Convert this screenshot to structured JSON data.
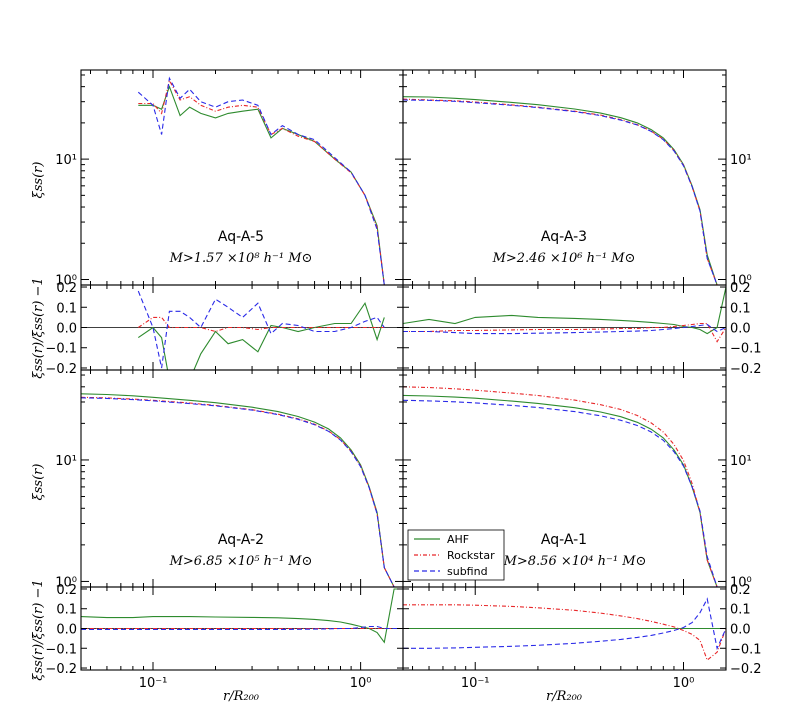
{
  "chart_data": {
    "type": "line",
    "x_scale": "log",
    "xlim": [
      0.045,
      1.6
    ],
    "x_ticks": [
      0.1,
      1.0
    ],
    "x_tick_labels": [
      "10⁻¹",
      "10⁰"
    ],
    "xlabel": "r/R₂₀₀",
    "main_ylabel": "ξss(r)",
    "ratio_ylabel": "ξss(r)/ξ̄ss(r) −1",
    "main_y_scale": "log",
    "main_ylim": [
      0.9,
      55
    ],
    "main_y_tick_labels": [
      "10⁰",
      "10¹"
    ],
    "ratio_ylim": [
      -0.21,
      0.21
    ],
    "ratio_y_ticks": [
      0.2,
      0.1,
      0.0,
      -0.1,
      -0.2
    ],
    "ratio_y_tick_labels": [
      "0.2",
      "0.1",
      "0.0",
      "−0.1",
      "−0.2"
    ],
    "legend": {
      "placement": "lower-left of panel Aq-A-1",
      "entries": [
        {
          "name": "AHF",
          "color": "#2e8b2e",
          "style": "solid"
        },
        {
          "name": "Rockstar",
          "color": "#e8282a",
          "style": "dashdot"
        },
        {
          "name": "subfind",
          "color": "#2a2ae8",
          "style": "dashed"
        }
      ]
    },
    "panels": [
      {
        "title": "Aq-A-5",
        "mass_label": "M>1.57 ×10⁸ h⁻¹ M⊙",
        "x": [
          0.085,
          0.1,
          0.11,
          0.12,
          0.135,
          0.15,
          0.17,
          0.2,
          0.23,
          0.27,
          0.32,
          0.37,
          0.42,
          0.5,
          0.6,
          0.75,
          0.9,
          1.05,
          1.2,
          1.3
        ],
        "series": [
          {
            "name": "AHF",
            "values": [
              28,
              28,
              26,
              40,
              23,
              27,
              24,
              22,
              24,
              25,
              26,
              15,
              18,
              16,
              14,
              10,
              7.8,
              5,
              2.8,
              0.9
            ]
          },
          {
            "name": "Rockstar",
            "values": [
              29,
              29,
              24,
              45,
              31,
              33,
              28,
              25,
              27,
              28,
              27,
              16,
              18,
              15.5,
              14,
              10,
              7.7,
              5,
              2.7,
              0.9
            ]
          },
          {
            "name": "subfind",
            "values": [
              36,
              28,
              16,
              47,
              32,
              38,
              30,
              27,
              30,
              31,
              28,
              16,
              19,
              16,
              14.5,
              10.3,
              7.8,
              5,
              2.6,
              0.9
            ]
          }
        ],
        "ratio": [
          {
            "name": "AHF",
            "values": [
              -0.05,
              0.0,
              -0.05,
              -0.26,
              -0.33,
              -0.27,
              -0.13,
              -0.02,
              -0.08,
              -0.06,
              -0.12,
              0.01,
              0.0,
              -0.02,
              0.0,
              0.02,
              0.02,
              0.12,
              -0.06,
              0.05
            ]
          },
          {
            "name": "Rockstar",
            "values": [
              0.0,
              0.05,
              0.05,
              0.0,
              0.0,
              0.0,
              0.0,
              -0.02,
              0.0,
              0.0,
              -0.01,
              0.0,
              0.0,
              0.0,
              0.0,
              0.0,
              0.0,
              0.0,
              0.0,
              0.0
            ]
          },
          {
            "name": "subfind",
            "values": [
              0.18,
              0.0,
              -0.2,
              0.08,
              0.08,
              0.05,
              0.0,
              0.14,
              0.1,
              0.05,
              0.12,
              -0.03,
              0.02,
              0.01,
              -0.02,
              -0.02,
              0.0,
              0.03,
              0.05,
              0.0
            ]
          }
        ]
      },
      {
        "title": "Aq-A-3",
        "mass_label": "M>2.46 ×10⁶ h⁻¹ M⊙",
        "x": [
          0.045,
          0.06,
          0.08,
          0.1,
          0.15,
          0.2,
          0.3,
          0.4,
          0.5,
          0.6,
          0.7,
          0.8,
          0.9,
          1.0,
          1.1,
          1.2,
          1.3,
          1.45,
          1.6
        ],
        "series": [
          {
            "name": "AHF",
            "values": [
              33,
              32.8,
              32,
              31.2,
              29.6,
              28.3,
              26.1,
              24.1,
              22.1,
              20,
              17.6,
              15,
              12,
              9,
              6,
              3.8,
              1.6,
              0.88,
              0.85
            ]
          },
          {
            "name": "Rockstar",
            "values": [
              31.5,
              31,
              30.5,
              29.8,
              28.2,
              27,
              25,
              23.2,
              21.3,
              19.3,
              17.1,
              14.6,
              11.8,
              8.9,
              5.9,
              3.7,
              1.5,
              0.88,
              0.85
            ]
          },
          {
            "name": "subfind",
            "values": [
              31,
              30.8,
              30.2,
              29.4,
              28,
              26.8,
              24.8,
              23,
              21.1,
              19.2,
              17,
              14.5,
              11.7,
              8.8,
              5.9,
              3.7,
              1.5,
              0.88,
              0.85
            ]
          }
        ],
        "ratio": [
          {
            "name": "AHF",
            "values": [
              0.02,
              0.04,
              0.02,
              0.05,
              0.06,
              0.05,
              0.045,
              0.04,
              0.035,
              0.03,
              0.025,
              0.02,
              0.015,
              0.005,
              0.0,
              -0.01,
              -0.03,
              0.0,
              0.2
            ]
          },
          {
            "name": "Rockstar",
            "values": [
              -0.02,
              -0.02,
              -0.015,
              -0.015,
              -0.012,
              -0.01,
              -0.01,
              -0.008,
              -0.005,
              -0.005,
              0.0,
              0.0,
              0.005,
              0.01,
              0.015,
              0.02,
              0.02,
              -0.07,
              0.0
            ]
          },
          {
            "name": "subfind",
            "values": [
              -0.02,
              -0.02,
              -0.025,
              -0.03,
              -0.03,
              -0.028,
              -0.025,
              -0.022,
              -0.02,
              -0.018,
              -0.015,
              -0.01,
              -0.005,
              0.0,
              0.005,
              0.01,
              0.015,
              -0.02,
              0.0
            ]
          }
        ]
      },
      {
        "title": "Aq-A-2",
        "mass_label": "M>6.85 ×10⁵ h⁻¹ M⊙",
        "x": [
          0.045,
          0.06,
          0.08,
          0.1,
          0.15,
          0.2,
          0.3,
          0.4,
          0.5,
          0.6,
          0.7,
          0.8,
          0.9,
          1.0,
          1.1,
          1.2,
          1.3,
          1.45,
          1.6
        ],
        "series": [
          {
            "name": "AHF",
            "values": [
              35,
              34.6,
              33.7,
              32.8,
              31,
              29.6,
              27.2,
              25,
              22.8,
              20.5,
              18,
              15.2,
              12.1,
              9.1,
              6,
              3.7,
              1.3,
              0.88,
              0.85
            ]
          },
          {
            "name": "Rockstar",
            "values": [
              32.8,
              32.4,
              31.7,
              31,
              29.4,
              28.1,
              25.9,
              23.8,
              21.8,
              19.7,
              17.3,
              14.7,
              11.8,
              8.9,
              5.9,
              3.6,
              1.3,
              0.88,
              0.85
            ]
          },
          {
            "name": "subfind",
            "values": [
              32.5,
              32.1,
              31.4,
              30.7,
              29.1,
              27.9,
              25.7,
              23.6,
              21.6,
              19.5,
              17.2,
              14.6,
              11.7,
              8.8,
              5.9,
              3.6,
              1.3,
              0.88,
              0.85
            ]
          }
        ],
        "ratio": [
          {
            "name": "AHF",
            "values": [
              0.06,
              0.055,
              0.055,
              0.06,
              0.06,
              0.058,
              0.056,
              0.054,
              0.05,
              0.046,
              0.04,
              0.033,
              0.022,
              0.01,
              0.0,
              -0.02,
              -0.07,
              0.2,
              0.2
            ]
          },
          {
            "name": "Rockstar",
            "values": [
              0.0,
              0.0,
              0.0,
              0.0,
              0.0,
              0.0,
              0.0,
              0.0,
              0.0,
              0.0,
              0.0,
              0.0,
              0.0,
              0.0,
              0.0,
              0.0,
              0.0,
              0.0,
              0.0
            ]
          },
          {
            "name": "subfind",
            "values": [
              -0.005,
              -0.005,
              -0.005,
              -0.005,
              -0.005,
              -0.005,
              -0.005,
              -0.005,
              -0.004,
              -0.003,
              -0.002,
              0.0,
              0.0,
              0.005,
              0.01,
              0.01,
              0.0,
              0.0,
              0.0
            ]
          }
        ]
      },
      {
        "title": "Aq-A-1",
        "mass_label": "M>8.56 ×10⁴ h⁻¹ M⊙",
        "x": [
          0.045,
          0.06,
          0.08,
          0.1,
          0.15,
          0.2,
          0.3,
          0.4,
          0.5,
          0.6,
          0.7,
          0.8,
          0.9,
          1.0,
          1.1,
          1.2,
          1.3,
          1.45,
          1.6
        ],
        "series": [
          {
            "name": "AHF",
            "values": [
              34,
              33.6,
              32.9,
              32.2,
              30.5,
              29.2,
              26.9,
              24.8,
              22.7,
              20.4,
              17.9,
              15.2,
              12.1,
              9.1,
              6,
              3.7,
              1.5,
              0.88,
              0.85
            ]
          },
          {
            "name": "Rockstar",
            "values": [
              40,
              39.5,
              38.5,
              37.5,
              35.5,
              33.9,
              31.1,
              28.5,
              26,
              23.2,
              20.2,
              17,
              13.4,
              9.9,
              6.4,
              3.7,
              1.5,
              0.88,
              0.85
            ]
          },
          {
            "name": "subfind",
            "values": [
              31,
              30.6,
              30.1,
              29.5,
              28.1,
              27,
              25,
              23.1,
              21.2,
              19.2,
              17,
              14.5,
              11.7,
              8.9,
              6,
              3.8,
              1.6,
              0.88,
              0.85
            ]
          }
        ],
        "ratio": [
          {
            "name": "AHF",
            "values": [
              0.0,
              0.0,
              0.0,
              0.0,
              0.0,
              0.0,
              0.0,
              0.0,
              0.0,
              0.0,
              0.0,
              0.0,
              0.0,
              0.0,
              0.0,
              0.0,
              0.0,
              0.0,
              0.0
            ]
          },
          {
            "name": "Rockstar",
            "values": [
              0.12,
              0.12,
              0.12,
              0.118,
              0.112,
              0.105,
              0.092,
              0.078,
              0.064,
              0.05,
              0.036,
              0.022,
              0.008,
              -0.01,
              -0.03,
              -0.06,
              -0.16,
              -0.12,
              0.0
            ]
          },
          {
            "name": "subfind",
            "values": [
              -0.1,
              -0.1,
              -0.098,
              -0.095,
              -0.09,
              -0.085,
              -0.075,
              -0.065,
              -0.055,
              -0.045,
              -0.035,
              -0.023,
              -0.01,
              0.005,
              0.03,
              0.08,
              0.15,
              -0.1,
              0.0
            ]
          }
        ]
      }
    ]
  }
}
